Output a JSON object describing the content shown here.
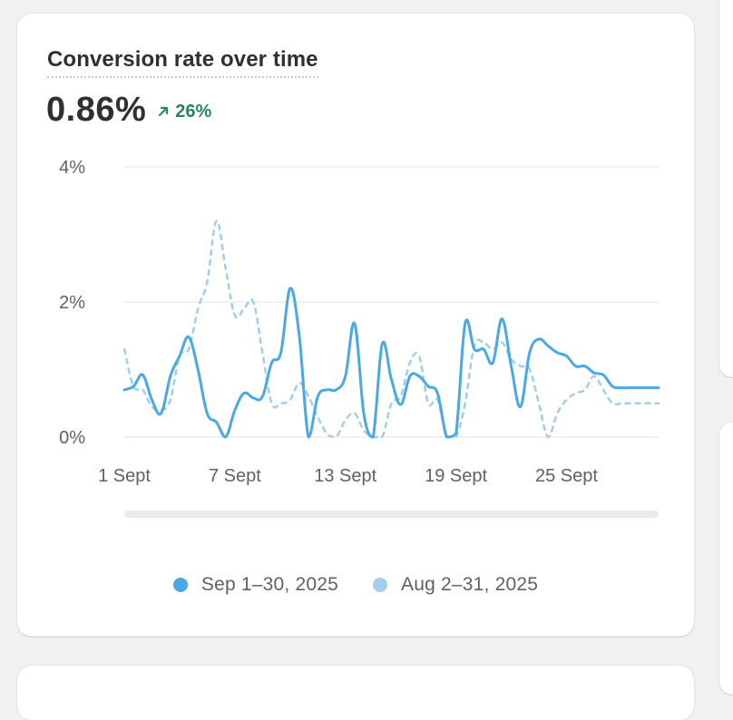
{
  "card": {
    "title": "Conversion rate over time",
    "metric_value": "0.86%",
    "delta_text": "26%",
    "delta_icon": "arrow-up-right-icon",
    "delta_color": "#29845a"
  },
  "legend": [
    {
      "label": "Sep 1–30, 2025",
      "color": "#4aa8e3"
    },
    {
      "label": "Aug 2–31, 2025",
      "color": "#a3cde8"
    }
  ],
  "chart_data": {
    "type": "line",
    "ylim": [
      0,
      4
    ],
    "yticks": [
      0,
      2,
      4
    ],
    "ytick_labels": [
      "0%",
      "2%",
      "4%"
    ],
    "xtick_labels": [
      "1 Sept",
      "7 Sept",
      "13 Sept",
      "19 Sept",
      "25 Sept"
    ],
    "xtick_days": [
      1,
      7,
      13,
      19,
      25
    ],
    "grid": true,
    "legend_position": "bottom",
    "series": [
      {
        "name": "Sep 1–30, 2025",
        "color": "#4aa8e3",
        "style": "solid",
        "x": [
          1.0,
          1.5,
          2.0,
          2.5,
          3.0,
          3.5,
          4.0,
          4.5,
          5.0,
          5.5,
          6.0,
          6.5,
          7.0,
          7.5,
          8.0,
          8.5,
          9.0,
          9.5,
          10.0,
          10.5,
          11.0,
          11.5,
          12.0,
          12.5,
          13.0,
          13.5,
          14.0,
          14.5,
          15.0,
          15.5,
          16.0,
          16.5,
          17.0,
          17.5,
          18.0,
          18.5,
          19.0,
          19.5,
          20.0,
          20.5,
          21.0,
          21.5,
          22.0,
          22.5,
          23.0,
          23.5,
          24.0,
          24.5,
          25.0,
          25.5,
          26.0,
          26.5,
          27.0,
          27.5,
          28.0,
          28.5,
          29.0,
          29.5,
          30.0
        ],
        "y": [
          0.7,
          0.75,
          0.92,
          0.55,
          0.35,
          0.9,
          1.2,
          1.48,
          1.0,
          0.35,
          0.22,
          0.0,
          0.4,
          0.65,
          0.58,
          0.6,
          1.1,
          1.25,
          2.2,
          1.5,
          0.0,
          0.6,
          0.7,
          0.7,
          0.9,
          1.68,
          0.35,
          0.0,
          1.38,
          0.85,
          0.48,
          0.9,
          0.9,
          0.75,
          0.65,
          0.0,
          0.05,
          1.68,
          1.3,
          1.3,
          1.1,
          1.75,
          1.05,
          0.45,
          1.25,
          1.45,
          1.35,
          1.25,
          1.2,
          1.05,
          1.05,
          0.95,
          0.92,
          0.75,
          0.73,
          0.73,
          0.73,
          0.73,
          0.73
        ]
      },
      {
        "name": "Aug 2–31, 2025",
        "color": "#a3cde8",
        "style": "dashed",
        "x": [
          1.0,
          1.5,
          2.0,
          2.5,
          3.0,
          3.5,
          4.0,
          4.5,
          5.0,
          5.5,
          6.0,
          6.5,
          7.0,
          7.5,
          8.0,
          8.5,
          9.0,
          9.5,
          10.0,
          10.5,
          11.0,
          11.5,
          12.0,
          12.5,
          13.0,
          13.5,
          14.0,
          14.5,
          15.0,
          15.5,
          16.0,
          16.5,
          17.0,
          17.5,
          18.0,
          18.5,
          19.0,
          19.5,
          20.0,
          20.5,
          21.0,
          21.5,
          22.0,
          22.5,
          23.0,
          23.5,
          24.0,
          24.5,
          25.0,
          25.5,
          26.0,
          26.5,
          27.0,
          27.5,
          28.0,
          28.5,
          29.0,
          29.5,
          30.0
        ],
        "y": [
          1.3,
          0.75,
          0.7,
          0.45,
          0.4,
          0.55,
          1.2,
          1.3,
          1.9,
          2.3,
          3.2,
          2.5,
          1.8,
          1.9,
          2.0,
          1.25,
          0.5,
          0.5,
          0.55,
          0.8,
          0.6,
          0.3,
          0.05,
          0.0,
          0.25,
          0.35,
          0.1,
          0.0,
          0.0,
          0.5,
          0.6,
          1.1,
          1.2,
          0.5,
          0.55,
          0.0,
          0.0,
          0.5,
          1.35,
          1.4,
          1.3,
          1.4,
          1.15,
          1.05,
          1.0,
          0.5,
          0.0,
          0.35,
          0.55,
          0.65,
          0.7,
          0.9,
          0.7,
          0.5,
          0.5,
          0.5,
          0.5,
          0.5,
          0.5
        ]
      }
    ]
  }
}
